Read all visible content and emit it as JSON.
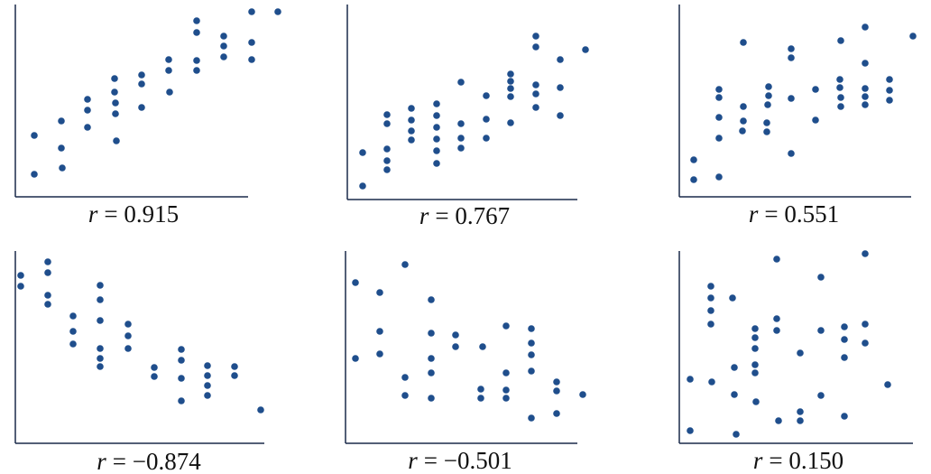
{
  "chart_data": [
    {
      "type": "scatter",
      "color": "#1f4e8c",
      "xlim": [
        0,
        300
      ],
      "ylim": [
        0,
        215
      ],
      "x": [
        21,
        21,
        51,
        51,
        52,
        80,
        80,
        80,
        110,
        110,
        111,
        111,
        112,
        140,
        140,
        140,
        170,
        170,
        171,
        201,
        201,
        201,
        201,
        231,
        231,
        231,
        262,
        262,
        262,
        291
      ],
      "y": [
        68,
        25,
        84,
        54,
        32,
        108,
        96,
        77,
        131,
        116,
        104,
        92,
        62,
        135,
        125,
        99,
        152,
        140,
        116,
        195,
        182,
        151,
        140,
        178,
        167,
        155,
        205,
        171,
        152,
        205
      ],
      "annotation": {
        "symbol": "r",
        "text": "= 0.915"
      }
    },
    {
      "type": "scatter",
      "color": "#1f4e8c",
      "xlim": [
        0,
        300
      ],
      "ylim": [
        0,
        215
      ],
      "x": [
        17,
        17,
        44,
        44,
        44,
        44,
        44,
        71,
        71,
        71,
        71,
        99,
        99,
        99,
        99,
        99,
        99,
        126,
        126,
        126,
        126,
        154,
        154,
        154,
        181,
        181,
        181,
        181,
        181,
        209,
        209,
        209,
        209,
        209,
        236,
        236,
        236,
        264
      ],
      "y": [
        15,
        52,
        33,
        43,
        56,
        84,
        94,
        66,
        76,
        88,
        101,
        40,
        54,
        67,
        80,
        93,
        106,
        57,
        68,
        84,
        130,
        68,
        89,
        115,
        85,
        114,
        123,
        131,
        139,
        102,
        117,
        127,
        169,
        181,
        93,
        124,
        155,
        166
      ],
      "annotation": {
        "symbol": "r",
        "text": "= 0.767"
      }
    },
    {
      "type": "scatter",
      "color": "#1f4e8c",
      "xlim": [
        0,
        300
      ],
      "ylim": [
        0,
        215
      ],
      "x": [
        16,
        16,
        44,
        44,
        44,
        44,
        44,
        71,
        71,
        71,
        70,
        97,
        97,
        98,
        99,
        99,
        124,
        124,
        124,
        124,
        151,
        151,
        179,
        178,
        178,
        179,
        179,
        206,
        206,
        206,
        206,
        206,
        233,
        233,
        233,
        259
      ],
      "y": [
        41,
        19,
        22,
        65,
        88,
        110,
        119,
        171,
        100,
        84,
        73,
        72,
        82,
        102,
        112,
        122,
        164,
        154,
        109,
        48,
        119,
        85,
        173,
        130,
        121,
        110,
        100,
        188,
        148,
        120,
        111,
        102,
        130,
        118,
        107,
        178
      ],
      "annotation": {
        "symbol": "r",
        "text": "= 0.551"
      }
    },
    {
      "type": "scatter",
      "color": "#1f4e8c",
      "xlim": [
        0,
        300
      ],
      "ylim": [
        0,
        215
      ],
      "x": [
        6,
        6,
        36,
        36,
        36,
        36,
        64,
        64,
        64,
        94,
        94,
        94,
        94,
        94,
        94,
        125,
        125,
        125,
        154,
        154,
        184,
        184,
        184,
        184,
        213,
        213,
        213,
        213,
        243,
        243,
        272
      ],
      "y": [
        186,
        174,
        201,
        189,
        164,
        154,
        141,
        124,
        110,
        175,
        159,
        136,
        105,
        94,
        85,
        132,
        119,
        105,
        84,
        74,
        104,
        92,
        72,
        47,
        86,
        75,
        64,
        53,
        85,
        75,
        37
      ],
      "annotation": {
        "symbol": "r",
        "text": "= −0.874"
      }
    },
    {
      "type": "scatter",
      "color": "#1f4e8c",
      "xlim": [
        0,
        300
      ],
      "ylim": [
        0,
        215
      ],
      "x": [
        11,
        11,
        38,
        38,
        38,
        66,
        66,
        66,
        95,
        95,
        95,
        95,
        95,
        122,
        122,
        152,
        150,
        150,
        178,
        178,
        178,
        178,
        206,
        206,
        206,
        206,
        206,
        234,
        234,
        234,
        263
      ],
      "y": [
        178,
        94,
        167,
        124,
        99,
        198,
        73,
        53,
        159,
        122,
        94,
        78,
        50,
        120,
        107,
        107,
        60,
        50,
        130,
        78,
        59,
        50,
        127,
        111,
        98,
        80,
        28,
        68,
        58,
        33,
        54
      ],
      "annotation": {
        "symbol": "r",
        "text": "= −0.501"
      }
    },
    {
      "type": "scatter",
      "color": "#1f4e8c",
      "xlim": [
        0,
        300
      ],
      "ylim": [
        0,
        215
      ],
      "x": [
        12,
        12,
        35,
        35,
        35,
        35,
        36,
        59,
        61,
        61,
        63,
        84,
        84,
        84,
        84,
        84,
        85,
        108,
        108,
        108,
        110,
        134,
        134,
        134,
        157,
        157,
        157,
        183,
        183,
        183,
        183,
        206,
        206,
        206,
        231
      ],
      "y": [
        71,
        14,
        174,
        161,
        147,
        132,
        68,
        161,
        84,
        54,
        10,
        127,
        117,
        105,
        87,
        78,
        46,
        204,
        138,
        125,
        25,
        100,
        35,
        25,
        184,
        125,
        53,
        129,
        115,
        95,
        30,
        210,
        132,
        111,
        65
      ],
      "annotation": {
        "symbol": "r",
        "text": "= 0.150"
      }
    }
  ]
}
